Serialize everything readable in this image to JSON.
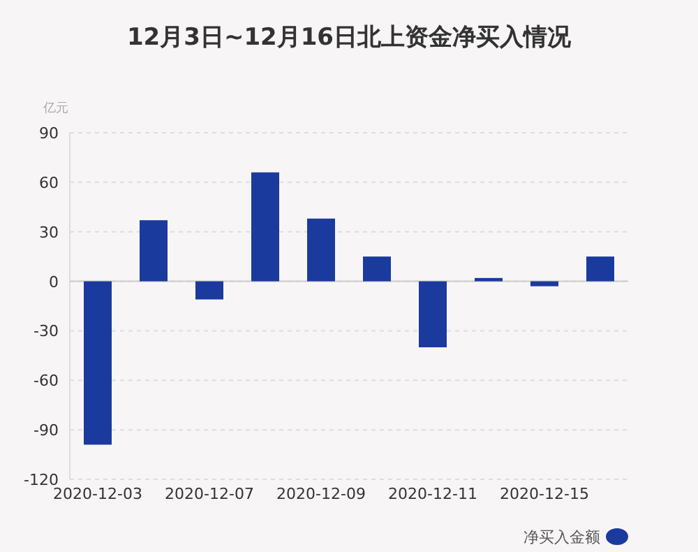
{
  "chart_data": {
    "type": "bar",
    "title": "12月3日~12月16日北上资金净买入情况",
    "ylabel": "亿元",
    "categories": [
      "2020-12-03",
      null,
      "2020-12-07",
      null,
      "2020-12-09",
      null,
      "2020-12-11",
      null,
      "2020-12-15",
      null
    ],
    "series": [
      {
        "name": "净买入金额",
        "color": "#1a3a9e",
        "values": [
          -99,
          37,
          -11,
          66,
          38,
          15,
          -40,
          2,
          -3,
          15
        ]
      }
    ],
    "ylim": [
      -120,
      90
    ],
    "yticks": [
      -120,
      -90,
      -60,
      -30,
      0,
      30,
      60,
      90
    ],
    "grid": "y",
    "legend": "bottom right"
  }
}
